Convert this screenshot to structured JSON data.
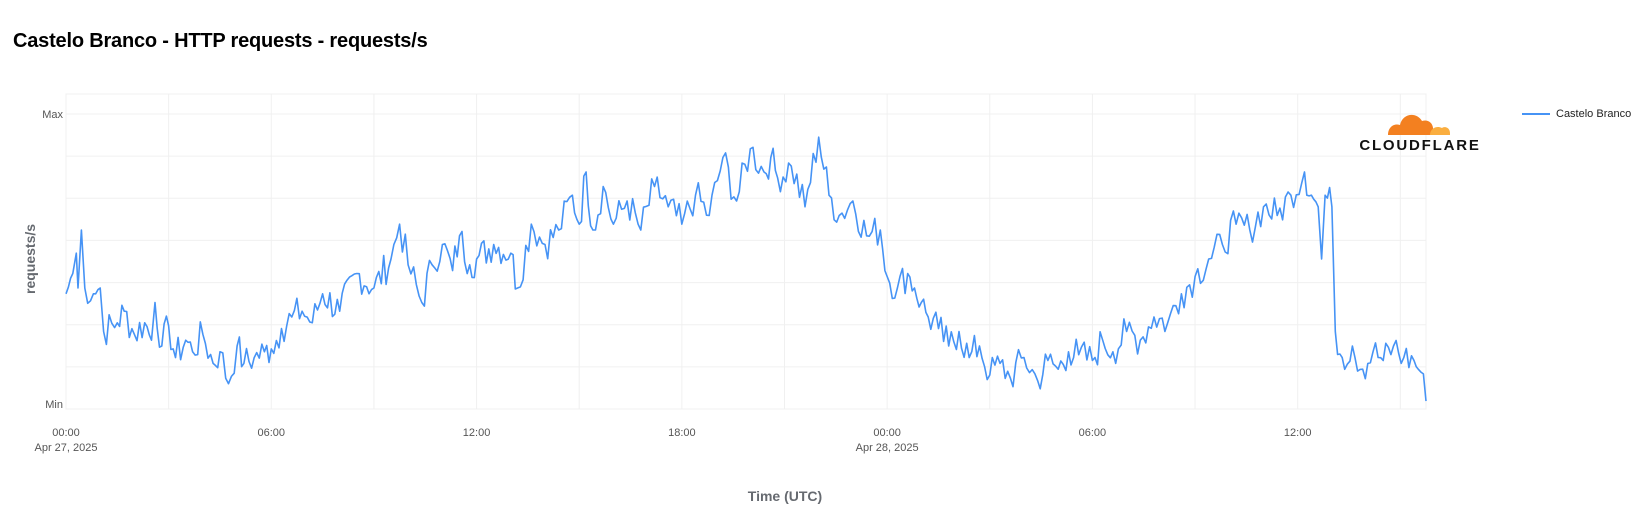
{
  "page": {
    "title": "Castelo Branco - HTTP requests - requests/s",
    "logo_text": "CLOUDFLARE",
    "logo_colors": [
      "#f38020",
      "#faae40"
    ]
  },
  "chart_data": {
    "type": "line",
    "title": "Castelo Branco - HTTP requests - requests/s",
    "xlabel": "Time (UTC)",
    "ylabel": "requests/s",
    "y_tick_labels": [
      "Max",
      "Min"
    ],
    "ylim": [
      0,
      100
    ],
    "x_ticks": [
      {
        "label": "00:00",
        "sublabel": "Apr 27, 2025",
        "hour": 0
      },
      {
        "label": "06:00",
        "sublabel": "",
        "hour": 6
      },
      {
        "label": "12:00",
        "sublabel": "",
        "hour": 12
      },
      {
        "label": "18:00",
        "sublabel": "",
        "hour": 18
      },
      {
        "label": "00:00",
        "sublabel": "Apr 28, 2025",
        "hour": 24
      },
      {
        "label": "06:00",
        "sublabel": "",
        "hour": 30
      },
      {
        "label": "12:00",
        "sublabel": "",
        "hour": 36
      }
    ],
    "xlim_hours": [
      0,
      39.75
    ],
    "grid": true,
    "legend_position": "top-right",
    "series": [
      {
        "name": "Castelo Branco",
        "color": "#4693f5",
        "key_points": [
          [
            0,
            38
          ],
          [
            0.2,
            45
          ],
          [
            0.3,
            52
          ],
          [
            0.35,
            40
          ],
          [
            0.45,
            60
          ],
          [
            0.55,
            40
          ],
          [
            0.8,
            38
          ],
          [
            1.0,
            40
          ],
          [
            1.1,
            25
          ],
          [
            1.5,
            28
          ],
          [
            1.7,
            32
          ],
          [
            2.0,
            24
          ],
          [
            2.3,
            28
          ],
          [
            2.5,
            22
          ],
          [
            2.6,
            35
          ],
          [
            2.8,
            20
          ],
          [
            3.0,
            27
          ],
          [
            3.2,
            16
          ],
          [
            3.5,
            22
          ],
          [
            3.7,
            18
          ],
          [
            4.0,
            24
          ],
          [
            4.3,
            14
          ],
          [
            4.5,
            18
          ],
          [
            4.75,
            7
          ],
          [
            5.0,
            20
          ],
          [
            5.2,
            14
          ],
          [
            5.5,
            16
          ],
          [
            5.8,
            18
          ],
          [
            6.0,
            19
          ],
          [
            6.3,
            26
          ],
          [
            6.6,
            30
          ],
          [
            6.9,
            32
          ],
          [
            7.2,
            28
          ],
          [
            7.5,
            38
          ],
          [
            8.0,
            32
          ],
          [
            8.5,
            45
          ],
          [
            9.0,
            40
          ],
          [
            9.5,
            50
          ],
          [
            9.75,
            62
          ],
          [
            10.0,
            48
          ],
          [
            10.4,
            35
          ],
          [
            10.7,
            48
          ],
          [
            11.0,
            55
          ],
          [
            11.3,
            46
          ],
          [
            11.5,
            58
          ],
          [
            11.8,
            48
          ],
          [
            12.0,
            50
          ],
          [
            12.5,
            55
          ],
          [
            13.0,
            52
          ],
          [
            13.2,
            40
          ],
          [
            13.6,
            62
          ],
          [
            14.0,
            55
          ],
          [
            14.4,
            60
          ],
          [
            14.8,
            72
          ],
          [
            15.0,
            62
          ],
          [
            15.2,
            80
          ],
          [
            15.4,
            60
          ],
          [
            15.7,
            75
          ],
          [
            16.0,
            62
          ],
          [
            16.4,
            70
          ],
          [
            16.8,
            60
          ],
          [
            17.2,
            75
          ],
          [
            17.6,
            68
          ],
          [
            18.0,
            62
          ],
          [
            18.4,
            72
          ],
          [
            18.8,
            65
          ],
          [
            19.2,
            85
          ],
          [
            19.6,
            70
          ],
          [
            20.0,
            88
          ],
          [
            20.4,
            80
          ],
          [
            20.6,
            85
          ],
          [
            20.8,
            78
          ],
          [
            21.2,
            82
          ],
          [
            21.6,
            68
          ],
          [
            22.0,
            92
          ],
          [
            22.3,
            72
          ],
          [
            22.6,
            65
          ],
          [
            23.0,
            70
          ],
          [
            23.4,
            58
          ],
          [
            23.8,
            60
          ],
          [
            24.0,
            44
          ],
          [
            24.3,
            40
          ],
          [
            24.6,
            45
          ],
          [
            24.8,
            40
          ],
          [
            25.0,
            35
          ],
          [
            25.2,
            30
          ],
          [
            25.5,
            26
          ],
          [
            25.8,
            20
          ],
          [
            26.1,
            25
          ],
          [
            26.4,
            16
          ],
          [
            26.7,
            20
          ],
          [
            27.0,
            10
          ],
          [
            27.3,
            14
          ],
          [
            27.6,
            9
          ],
          [
            28.0,
            16
          ],
          [
            28.4,
            8
          ],
          [
            28.7,
            15
          ],
          [
            29.0,
            12
          ],
          [
            29.3,
            18
          ],
          [
            29.6,
            17
          ],
          [
            30.0,
            15
          ],
          [
            30.3,
            22
          ],
          [
            30.6,
            18
          ],
          [
            31.0,
            25
          ],
          [
            31.4,
            22
          ],
          [
            31.8,
            30
          ],
          [
            32.2,
            28
          ],
          [
            32.6,
            38
          ],
          [
            33.0,
            44
          ],
          [
            33.4,
            50
          ],
          [
            33.8,
            55
          ],
          [
            34.2,
            62
          ],
          [
            34.6,
            60
          ],
          [
            35.0,
            68
          ],
          [
            35.4,
            65
          ],
          [
            35.8,
            72
          ],
          [
            36.2,
            80
          ],
          [
            36.4,
            72
          ],
          [
            36.6,
            68
          ],
          [
            36.7,
            50
          ],
          [
            36.8,
            72
          ],
          [
            37.0,
            68
          ],
          [
            37.1,
            25
          ],
          [
            37.3,
            16
          ],
          [
            37.6,
            20
          ],
          [
            37.9,
            12
          ],
          [
            38.2,
            18
          ],
          [
            38.5,
            15
          ],
          [
            38.8,
            20
          ],
          [
            39.1,
            16
          ],
          [
            39.4,
            15
          ],
          [
            39.6,
            11
          ],
          [
            39.75,
            1
          ]
        ]
      }
    ]
  }
}
